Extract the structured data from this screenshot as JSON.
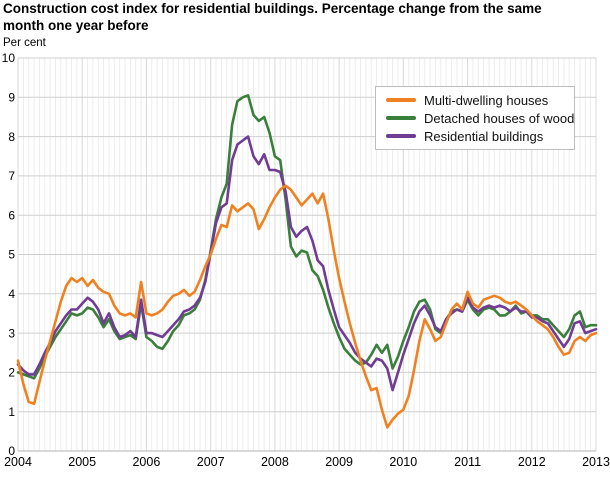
{
  "header": {
    "title": "Construction cost index for residential buildings. Percentage change from the same month one year before",
    "unit_label": "Per cent"
  },
  "chart_data": {
    "type": "line",
    "title": "Construction cost index for residential buildings. Percentage change from the same month one year before",
    "ylabel": "Per cent",
    "xlabel": "",
    "ylim": [
      0,
      10
    ],
    "y_ticks": [
      0,
      1,
      2,
      3,
      4,
      5,
      6,
      7,
      8,
      9,
      10
    ],
    "x_tick_labels": [
      "2004",
      "2005",
      "2006",
      "2007",
      "2008",
      "2009",
      "2010",
      "2011",
      "2012",
      "2013"
    ],
    "x_frequency": "monthly",
    "x_range": "2004-01 to 2013-01",
    "grid": {
      "horizontal": true,
      "vertical_monthly": true
    },
    "legend_position": "top-right",
    "series": [
      {
        "name": "Multi-dwelling houses",
        "color": "#F08121",
        "values": [
          2.3,
          1.7,
          1.25,
          1.2,
          1.75,
          2.3,
          2.8,
          3.3,
          3.8,
          4.2,
          4.4,
          4.3,
          4.4,
          4.2,
          4.35,
          4.15,
          4.05,
          4.0,
          3.7,
          3.5,
          3.45,
          3.5,
          3.4,
          4.3,
          3.5,
          3.45,
          3.5,
          3.6,
          3.8,
          3.95,
          4.0,
          4.1,
          3.95,
          4.05,
          4.35,
          4.7,
          5.0,
          5.4,
          5.75,
          5.7,
          6.25,
          6.1,
          6.2,
          6.3,
          6.15,
          5.65,
          5.9,
          6.2,
          6.45,
          6.65,
          6.75,
          6.65,
          6.45,
          6.25,
          6.4,
          6.55,
          6.3,
          6.55,
          5.9,
          5.1,
          4.4,
          3.8,
          3.25,
          2.75,
          2.3,
          1.9,
          1.55,
          1.6,
          1.05,
          0.6,
          0.8,
          0.95,
          1.05,
          1.4,
          2.05,
          2.8,
          3.35,
          3.1,
          2.8,
          2.9,
          3.25,
          3.6,
          3.75,
          3.6,
          4.05,
          3.75,
          3.65,
          3.85,
          3.9,
          3.95,
          3.9,
          3.8,
          3.75,
          3.8,
          3.7,
          3.6,
          3.45,
          3.3,
          3.2,
          3.1,
          2.9,
          2.65,
          2.45,
          2.5,
          2.8,
          2.9,
          2.8,
          2.95,
          3.0
        ]
      },
      {
        "name": "Detached houses of wood",
        "color": "#3B7F3C",
        "values": [
          2.0,
          1.95,
          1.9,
          1.85,
          2.1,
          2.4,
          2.65,
          2.9,
          3.1,
          3.3,
          3.5,
          3.45,
          3.5,
          3.65,
          3.6,
          3.4,
          3.15,
          3.35,
          3.05,
          2.85,
          2.9,
          2.95,
          2.85,
          3.75,
          2.9,
          2.8,
          2.65,
          2.6,
          2.8,
          3.05,
          3.2,
          3.45,
          3.5,
          3.6,
          3.85,
          4.35,
          5.1,
          5.9,
          6.45,
          6.8,
          8.3,
          8.9,
          9.0,
          9.05,
          8.55,
          8.4,
          8.5,
          8.1,
          7.5,
          7.4,
          6.4,
          5.2,
          4.95,
          5.1,
          5.05,
          4.6,
          4.45,
          4.1,
          3.65,
          3.25,
          2.9,
          2.6,
          2.45,
          2.3,
          2.2,
          2.25,
          2.45,
          2.7,
          2.5,
          2.7,
          2.1,
          2.4,
          2.8,
          3.15,
          3.55,
          3.8,
          3.85,
          3.6,
          3.1,
          3.0,
          3.35,
          3.55,
          3.6,
          3.55,
          3.85,
          3.6,
          3.45,
          3.6,
          3.65,
          3.6,
          3.45,
          3.45,
          3.55,
          3.7,
          3.5,
          3.55,
          3.45,
          3.45,
          3.35,
          3.35,
          3.2,
          3.05,
          2.9,
          3.1,
          3.45,
          3.55,
          3.15,
          3.2,
          3.2
        ]
      },
      {
        "name": "Residential buildings",
        "color": "#713C93",
        "values": [
          2.2,
          2.05,
          1.95,
          1.95,
          2.2,
          2.5,
          2.75,
          3.05,
          3.25,
          3.45,
          3.6,
          3.6,
          3.75,
          3.9,
          3.8,
          3.6,
          3.25,
          3.5,
          3.15,
          2.9,
          2.95,
          3.05,
          2.9,
          3.85,
          3.0,
          3.0,
          2.95,
          2.9,
          3.05,
          3.2,
          3.35,
          3.55,
          3.6,
          3.7,
          3.9,
          4.3,
          5.05,
          5.8,
          6.2,
          6.3,
          7.4,
          7.8,
          7.9,
          8.0,
          7.5,
          7.3,
          7.55,
          7.15,
          7.15,
          7.1,
          6.6,
          5.7,
          5.45,
          5.6,
          5.7,
          5.35,
          4.85,
          4.7,
          4.1,
          3.6,
          3.15,
          2.95,
          2.75,
          2.5,
          2.35,
          2.25,
          2.15,
          2.35,
          2.3,
          2.1,
          1.55,
          2.0,
          2.45,
          2.85,
          3.25,
          3.55,
          3.7,
          3.45,
          3.15,
          3.05,
          3.35,
          3.5,
          3.6,
          3.55,
          3.9,
          3.65,
          3.55,
          3.65,
          3.7,
          3.65,
          3.7,
          3.65,
          3.55,
          3.65,
          3.55,
          3.55,
          3.4,
          3.4,
          3.3,
          3.25,
          3.05,
          2.85,
          2.65,
          2.85,
          3.25,
          3.3,
          3.0,
          3.05,
          3.1
        ]
      }
    ],
    "colors": {
      "grid_horizontal": "#cfcfcf",
      "grid_month": "#ededed",
      "grid_year": "#d8d8d8",
      "axis_line": "#b3b3b3"
    }
  }
}
